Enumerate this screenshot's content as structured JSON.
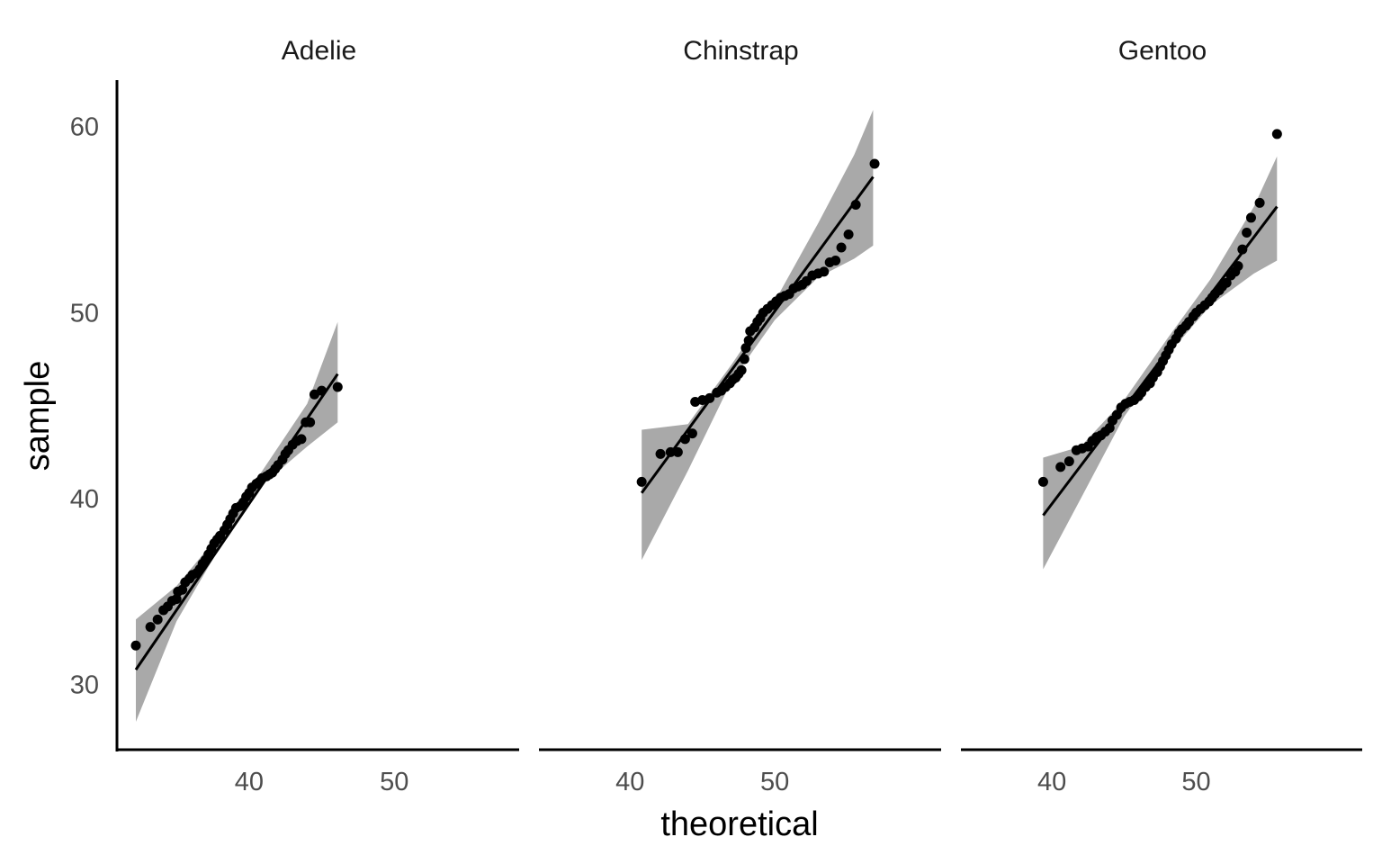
{
  "chart_data": {
    "type": "scatter",
    "subtype": "qq-plot faceted by species with reference line and confidence band",
    "xlabel": "theoretical",
    "ylabel": "sample",
    "ylim": [
      26.5,
      62.5
    ],
    "y_ticks": [
      30,
      40,
      50,
      60
    ],
    "x_ticks": [
      40,
      50
    ],
    "grid": false,
    "colors": {
      "points": "#000000",
      "line": "#000000",
      "band": "#a9a9a9",
      "axis": "#000000"
    },
    "panels": [
      {
        "name": "Adelie",
        "xlim": [
          30.9,
          58.6
        ],
        "line": {
          "x": [
            32.2,
            46.1
          ],
          "y": [
            30.8,
            46.7
          ]
        },
        "band": [
          [
            32.2,
            28.0,
            33.5
          ],
          [
            35.0,
            33.4,
            35.3
          ],
          [
            38.0,
            37.4,
            38.1
          ],
          [
            41.0,
            40.8,
            41.6
          ],
          [
            44.0,
            42.8,
            45.1
          ],
          [
            46.1,
            44.1,
            49.5
          ]
        ],
        "points": [
          [
            32.2,
            32.1
          ],
          [
            33.2,
            33.1
          ],
          [
            33.7,
            33.5
          ],
          [
            34.1,
            34.0
          ],
          [
            34.4,
            34.2
          ],
          [
            34.7,
            34.5
          ],
          [
            35.0,
            34.6
          ],
          [
            35.1,
            35.0
          ],
          [
            35.4,
            35.1
          ],
          [
            35.6,
            35.5
          ],
          [
            35.9,
            35.7
          ],
          [
            36.1,
            35.9
          ],
          [
            36.4,
            36.0
          ],
          [
            36.6,
            36.2
          ],
          [
            36.8,
            36.5
          ],
          [
            37.0,
            36.7
          ],
          [
            37.2,
            37.0
          ],
          [
            37.4,
            37.3
          ],
          [
            37.6,
            37.6
          ],
          [
            37.8,
            37.8
          ],
          [
            38.0,
            38.0
          ],
          [
            38.3,
            38.3
          ],
          [
            38.5,
            38.6
          ],
          [
            38.7,
            38.9
          ],
          [
            38.9,
            39.2
          ],
          [
            39.1,
            39.5
          ],
          [
            39.4,
            39.6
          ],
          [
            39.6,
            39.8
          ],
          [
            39.8,
            40.1
          ],
          [
            40.0,
            40.3
          ],
          [
            40.2,
            40.6
          ],
          [
            40.5,
            40.8
          ],
          [
            40.7,
            40.9
          ],
          [
            40.9,
            41.1
          ],
          [
            41.2,
            41.2
          ],
          [
            41.4,
            41.3
          ],
          [
            41.6,
            41.4
          ],
          [
            41.8,
            41.6
          ],
          [
            42.0,
            41.8
          ],
          [
            42.3,
            42.1
          ],
          [
            42.5,
            42.4
          ],
          [
            42.7,
            42.6
          ],
          [
            43.0,
            42.9
          ],
          [
            43.3,
            43.1
          ],
          [
            43.6,
            43.2
          ],
          [
            43.9,
            44.1
          ],
          [
            44.2,
            44.1
          ],
          [
            44.5,
            45.6
          ],
          [
            45.0,
            45.8
          ],
          [
            46.1,
            46.0
          ]
        ]
      },
      {
        "name": "Chinstrap",
        "xlim": [
          33.7,
          61.5
        ],
        "line": {
          "x": [
            40.8,
            56.8
          ],
          "y": [
            40.3,
            57.3
          ]
        },
        "band": [
          [
            40.8,
            36.7,
            43.7
          ],
          [
            44.0,
            41.5,
            44.0
          ],
          [
            47.0,
            46.3,
            47.2
          ],
          [
            50.0,
            49.6,
            50.6
          ],
          [
            53.0,
            51.9,
            54.8
          ],
          [
            55.5,
            52.9,
            58.5
          ],
          [
            56.8,
            53.6,
            60.9
          ]
        ],
        "points": [
          [
            40.8,
            40.9
          ],
          [
            42.1,
            42.4
          ],
          [
            42.8,
            42.5
          ],
          [
            43.3,
            42.5
          ],
          [
            43.8,
            43.2
          ],
          [
            44.3,
            43.5
          ],
          [
            44.5,
            45.2
          ],
          [
            45.0,
            45.3
          ],
          [
            45.5,
            45.4
          ],
          [
            46.0,
            45.7
          ],
          [
            46.3,
            45.8
          ],
          [
            46.6,
            46.0
          ],
          [
            46.9,
            46.2
          ],
          [
            47.1,
            46.4
          ],
          [
            47.3,
            46.5
          ],
          [
            47.5,
            46.7
          ],
          [
            47.7,
            46.9
          ],
          [
            47.9,
            47.5
          ],
          [
            48.0,
            48.1
          ],
          [
            48.2,
            48.5
          ],
          [
            48.3,
            49.0
          ],
          [
            48.6,
            49.2
          ],
          [
            48.8,
            49.5
          ],
          [
            49.0,
            49.7
          ],
          [
            49.2,
            50.0
          ],
          [
            49.5,
            50.2
          ],
          [
            49.8,
            50.4
          ],
          [
            50.1,
            50.6
          ],
          [
            50.4,
            50.8
          ],
          [
            50.7,
            50.9
          ],
          [
            51.0,
            51.0
          ],
          [
            51.3,
            51.3
          ],
          [
            51.6,
            51.4
          ],
          [
            51.9,
            51.5
          ],
          [
            52.2,
            51.7
          ],
          [
            52.6,
            52.0
          ],
          [
            53.0,
            52.1
          ],
          [
            53.4,
            52.2
          ],
          [
            53.8,
            52.7
          ],
          [
            54.2,
            52.8
          ],
          [
            54.6,
            53.5
          ],
          [
            55.1,
            54.2
          ],
          [
            55.6,
            55.8
          ],
          [
            56.9,
            58.0
          ]
        ]
      },
      {
        "name": "Gentoo",
        "xlim": [
          33.7,
          61.5
        ],
        "line": {
          "x": [
            39.4,
            55.6
          ],
          "y": [
            39.1,
            55.7
          ]
        },
        "band": [
          [
            39.4,
            36.2,
            42.2
          ],
          [
            42.0,
            40.0,
            42.8
          ],
          [
            45.0,
            44.4,
            45.3
          ],
          [
            48.0,
            47.7,
            48.6
          ],
          [
            51.0,
            50.4,
            51.8
          ],
          [
            54.0,
            52.1,
            55.7
          ],
          [
            55.6,
            52.8,
            58.4
          ]
        ],
        "points": [
          [
            39.4,
            40.9
          ],
          [
            40.6,
            41.7
          ],
          [
            41.2,
            42.0
          ],
          [
            41.7,
            42.6
          ],
          [
            42.1,
            42.7
          ],
          [
            42.5,
            42.8
          ],
          [
            42.8,
            43.1
          ],
          [
            43.1,
            43.3
          ],
          [
            43.4,
            43.4
          ],
          [
            43.7,
            43.6
          ],
          [
            44.0,
            43.8
          ],
          [
            44.2,
            44.2
          ],
          [
            44.5,
            44.5
          ],
          [
            44.8,
            44.9
          ],
          [
            45.1,
            45.1
          ],
          [
            45.4,
            45.2
          ],
          [
            45.7,
            45.3
          ],
          [
            46.0,
            45.5
          ],
          [
            46.2,
            45.7
          ],
          [
            46.5,
            46.0
          ],
          [
            46.8,
            46.2
          ],
          [
            47.0,
            46.5
          ],
          [
            47.3,
            46.8
          ],
          [
            47.5,
            47.1
          ],
          [
            47.7,
            47.4
          ],
          [
            47.9,
            47.7
          ],
          [
            48.1,
            48.0
          ],
          [
            48.3,
            48.3
          ],
          [
            48.6,
            48.6
          ],
          [
            48.8,
            48.9
          ],
          [
            49.0,
            49.1
          ],
          [
            49.3,
            49.3
          ],
          [
            49.5,
            49.5
          ],
          [
            49.8,
            49.8
          ],
          [
            50.0,
            50.0
          ],
          [
            50.3,
            50.2
          ],
          [
            50.6,
            50.4
          ],
          [
            50.9,
            50.6
          ],
          [
            51.1,
            50.8
          ],
          [
            51.3,
            51.0
          ],
          [
            51.6,
            51.2
          ],
          [
            51.8,
            51.4
          ],
          [
            52.1,
            51.6
          ],
          [
            52.4,
            52.0
          ],
          [
            52.7,
            52.2
          ],
          [
            52.9,
            52.5
          ],
          [
            53.2,
            53.4
          ],
          [
            53.5,
            54.3
          ],
          [
            53.8,
            55.1
          ],
          [
            54.4,
            55.9
          ],
          [
            55.6,
            59.6
          ]
        ]
      }
    ]
  }
}
